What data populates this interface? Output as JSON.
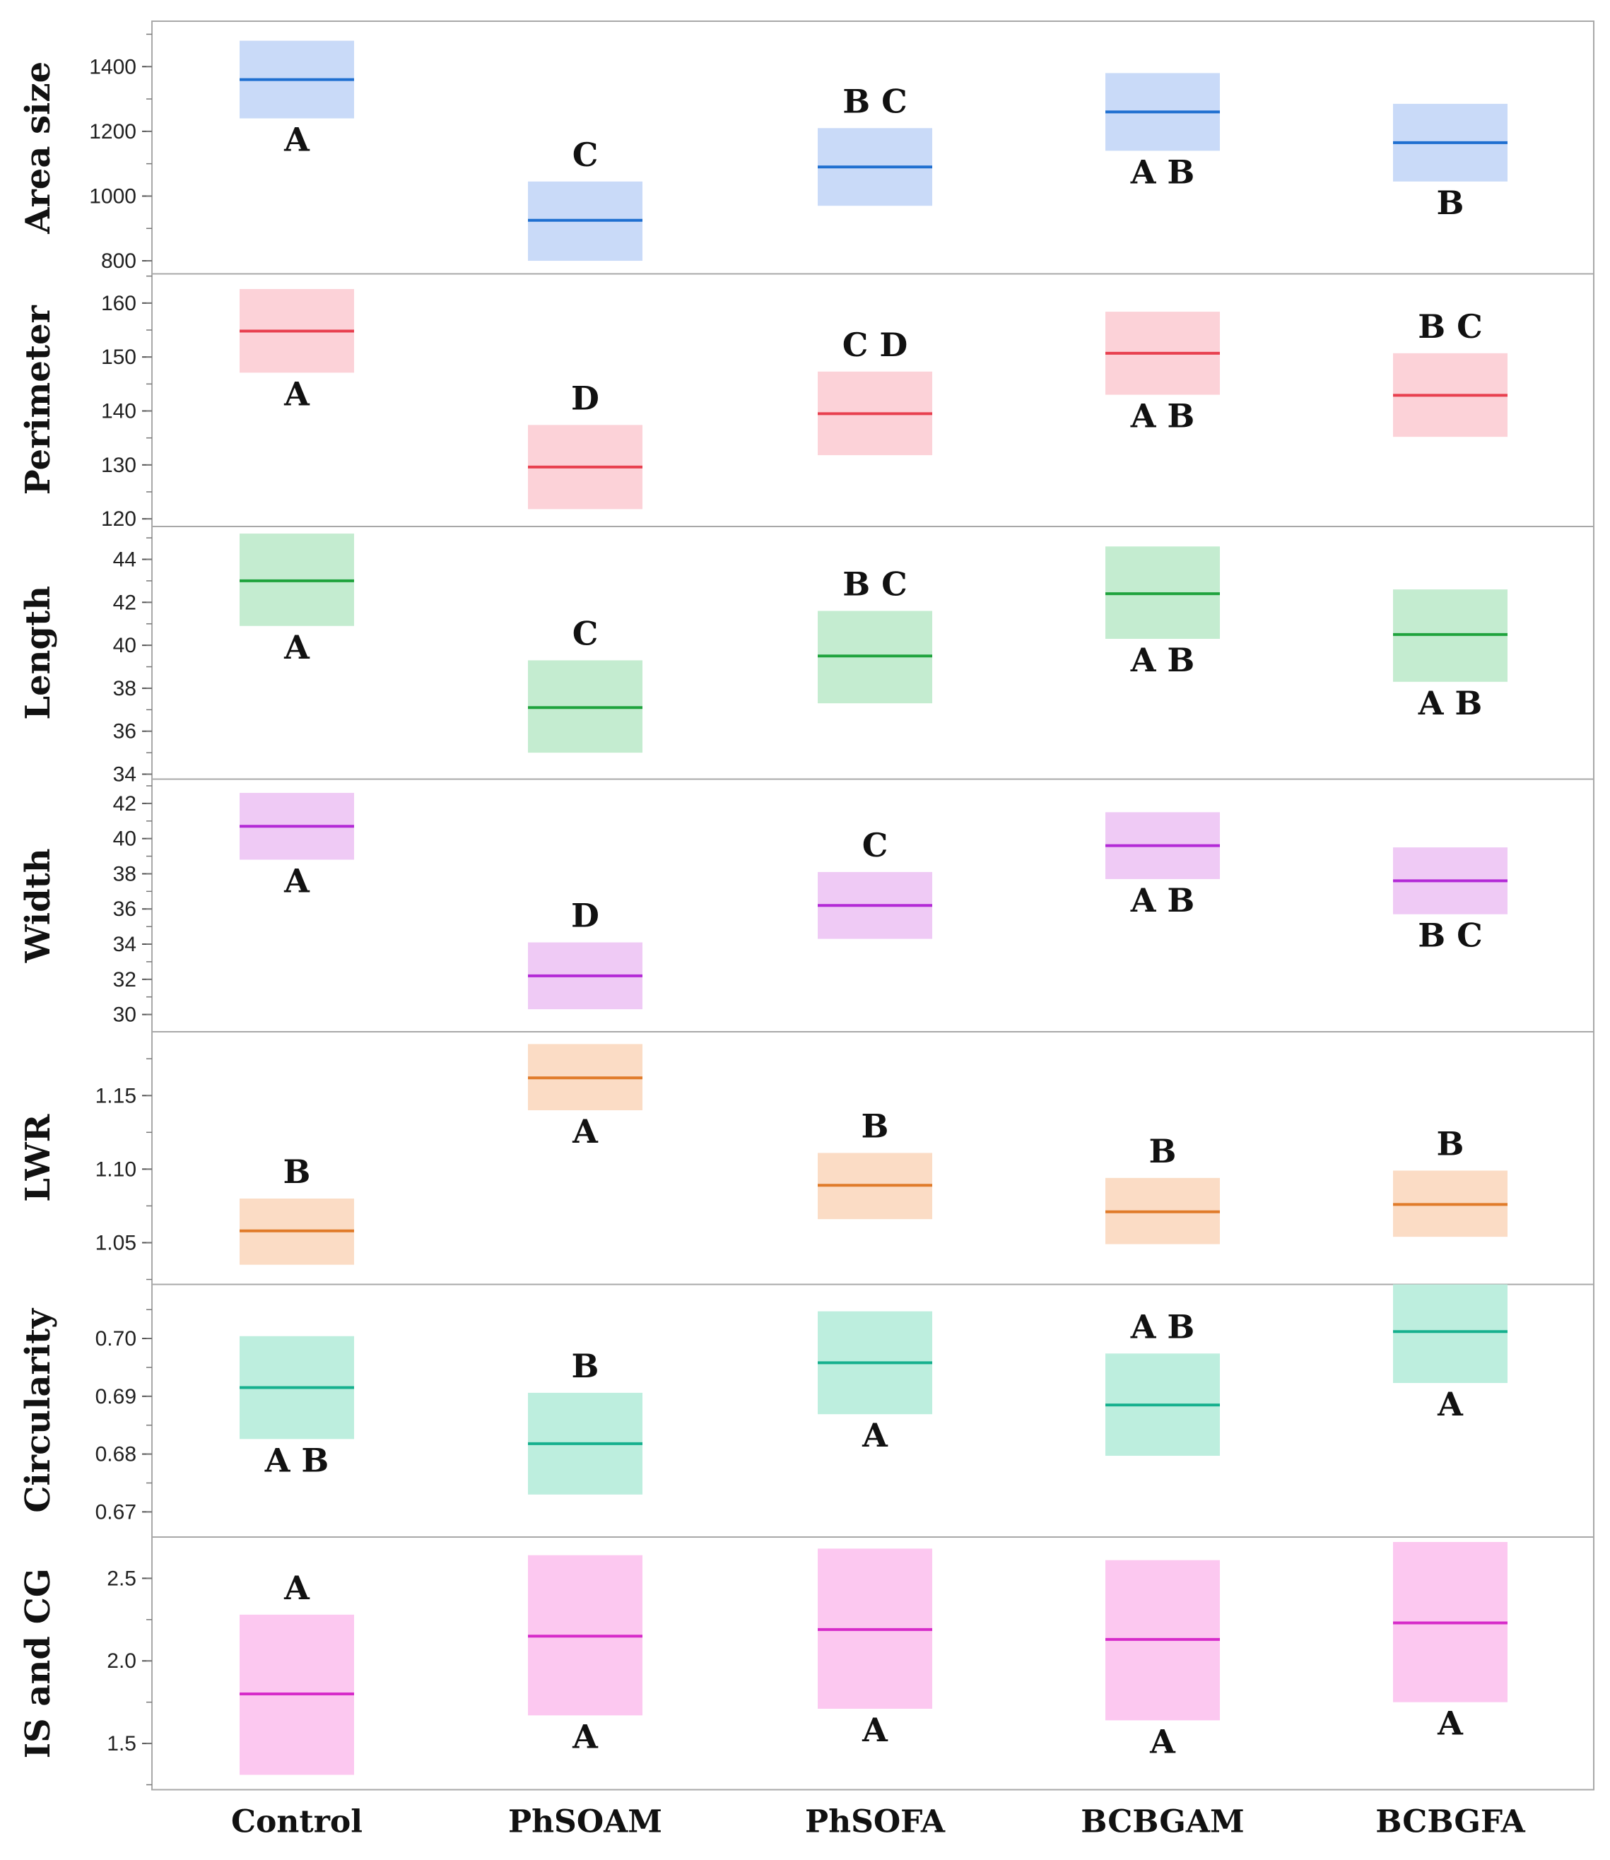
{
  "chart_data": {
    "type": "box",
    "categories": [
      "Control",
      "PhSOAM",
      "PhSOFA",
      "BCBGAM",
      "BCBGFA"
    ],
    "panels": [
      {
        "title": "Area size",
        "ylim": [
          775,
          1525
        ],
        "ticks": [
          800,
          1000,
          1200,
          1400
        ],
        "tick_labels": [
          "800",
          "1000",
          "1200",
          "1400"
        ],
        "color": "#1f6fd0",
        "fill": "#c9daf8",
        "series": [
          {
            "category": "Control",
            "mean": 1360,
            "lower": 1240,
            "upper": 1480,
            "letters": "A",
            "label_pos": "below"
          },
          {
            "category": "PhSOAM",
            "mean": 925,
            "lower": 800,
            "upper": 1045,
            "letters": "C",
            "label_pos": "above"
          },
          {
            "category": "PhSOFA",
            "mean": 1090,
            "lower": 970,
            "upper": 1210,
            "letters": "B C",
            "label_pos": "above"
          },
          {
            "category": "BCBGAM",
            "mean": 1260,
            "lower": 1140,
            "upper": 1380,
            "letters": "A B",
            "label_pos": "below"
          },
          {
            "category": "BCBGFA",
            "mean": 1165,
            "lower": 1045,
            "upper": 1285,
            "letters": "B",
            "label_pos": "below"
          }
        ]
      },
      {
        "title": "Perimeter",
        "ylim": [
          119.5,
          164.5
        ],
        "ticks": [
          120,
          130,
          140,
          150,
          160
        ],
        "tick_labels": [
          "120",
          "130",
          "140",
          "150",
          "160"
        ],
        "color": "#e8404f",
        "fill": "#fcd2d8",
        "series": [
          {
            "category": "Control",
            "mean": 154.8,
            "lower": 147.1,
            "upper": 162.6,
            "letters": "A",
            "label_pos": "below"
          },
          {
            "category": "PhSOAM",
            "mean": 129.6,
            "lower": 121.8,
            "upper": 137.4,
            "letters": "D",
            "label_pos": "above"
          },
          {
            "category": "PhSOFA",
            "mean": 139.5,
            "lower": 131.8,
            "upper": 147.3,
            "letters": "C D",
            "label_pos": "above"
          },
          {
            "category": "BCBGAM",
            "mean": 150.7,
            "lower": 143.0,
            "upper": 158.4,
            "letters": "A B",
            "label_pos": "below"
          },
          {
            "category": "BCBGFA",
            "mean": 142.9,
            "lower": 135.2,
            "upper": 150.7,
            "letters": "B C",
            "label_pos": "above"
          }
        ]
      },
      {
        "title": "Length",
        "ylim": [
          34,
          45.3
        ],
        "ticks": [
          34,
          36,
          38,
          40,
          42,
          44
        ],
        "tick_labels": [
          "34",
          "36",
          "38",
          "40",
          "42",
          "44"
        ],
        "color": "#1fa33d",
        "fill": "#c4ecd0",
        "series": [
          {
            "category": "Control",
            "mean": 43.0,
            "lower": 40.9,
            "upper": 45.2,
            "letters": "A",
            "label_pos": "below"
          },
          {
            "category": "PhSOAM",
            "mean": 37.1,
            "lower": 35.0,
            "upper": 39.3,
            "letters": "C",
            "label_pos": "above"
          },
          {
            "category": "PhSOFA",
            "mean": 39.5,
            "lower": 37.3,
            "upper": 41.6,
            "letters": "B C",
            "label_pos": "above"
          },
          {
            "category": "BCBGAM",
            "mean": 42.4,
            "lower": 40.3,
            "upper": 44.6,
            "letters": "A B",
            "label_pos": "below"
          },
          {
            "category": "BCBGFA",
            "mean": 40.5,
            "lower": 38.3,
            "upper": 42.6,
            "letters": "A B",
            "label_pos": "below"
          }
        ]
      },
      {
        "title": "Width",
        "ylim": [
          29.3,
          43.1
        ],
        "ticks": [
          30,
          32,
          34,
          36,
          38,
          40,
          42
        ],
        "tick_labels": [
          "30",
          "32",
          "34",
          "36",
          "38",
          "40",
          "42"
        ],
        "color": "#b32ad6",
        "fill": "#efcaf5",
        "series": [
          {
            "category": "Control",
            "mean": 40.7,
            "lower": 38.8,
            "upper": 42.6,
            "letters": "A",
            "label_pos": "below"
          },
          {
            "category": "PhSOAM",
            "mean": 32.2,
            "lower": 30.3,
            "upper": 34.1,
            "letters": "D",
            "label_pos": "above"
          },
          {
            "category": "PhSOFA",
            "mean": 36.2,
            "lower": 34.3,
            "upper": 38.1,
            "letters": "C",
            "label_pos": "above"
          },
          {
            "category": "BCBGAM",
            "mean": 39.6,
            "lower": 37.7,
            "upper": 41.5,
            "letters": "A B",
            "label_pos": "below"
          },
          {
            "category": "BCBGFA",
            "mean": 37.6,
            "lower": 35.7,
            "upper": 39.5,
            "letters": "B C",
            "label_pos": "below"
          }
        ]
      },
      {
        "title": "LWR",
        "ylim": [
          1.025,
          1.19
        ],
        "ticks": [
          1.05,
          1.1,
          1.15
        ],
        "tick_labels": [
          "1.05",
          "1.10",
          "1.15"
        ],
        "color": "#e07b2a",
        "fill": "#fbdcc5",
        "series": [
          {
            "category": "Control",
            "mean": 1.058,
            "lower": 1.035,
            "upper": 1.08,
            "letters": "B",
            "label_pos": "above"
          },
          {
            "category": "PhSOAM",
            "mean": 1.162,
            "lower": 1.14,
            "upper": 1.185,
            "letters": "A",
            "label_pos": "below"
          },
          {
            "category": "PhSOFA",
            "mean": 1.089,
            "lower": 1.066,
            "upper": 1.111,
            "letters": "B",
            "label_pos": "above"
          },
          {
            "category": "BCBGAM",
            "mean": 1.071,
            "lower": 1.049,
            "upper": 1.094,
            "letters": "B",
            "label_pos": "above"
          },
          {
            "category": "BCBGFA",
            "mean": 1.076,
            "lower": 1.054,
            "upper": 1.099,
            "letters": "B",
            "label_pos": "above"
          }
        ]
      },
      {
        "title": "Circularity",
        "ylim": [
          0.6665,
          0.7085
        ],
        "ticks": [
          0.67,
          0.68,
          0.69,
          0.7
        ],
        "tick_labels": [
          "0.67",
          "0.68",
          "0.69",
          "0.70"
        ],
        "color": "#16b08e",
        "fill": "#bdeede",
        "series": [
          {
            "category": "Control",
            "mean": 0.6915,
            "lower": 0.6826,
            "upper": 0.7004,
            "letters": "A B",
            "label_pos": "below"
          },
          {
            "category": "PhSOAM",
            "mean": 0.6818,
            "lower": 0.673,
            "upper": 0.6906,
            "letters": "B",
            "label_pos": "above"
          },
          {
            "category": "PhSOFA",
            "mean": 0.6958,
            "lower": 0.6869,
            "upper": 0.7047,
            "letters": "A",
            "label_pos": "below"
          },
          {
            "category": "BCBGAM",
            "mean": 0.6885,
            "lower": 0.6797,
            "upper": 0.6974,
            "letters": "A B",
            "label_pos": "above"
          },
          {
            "category": "BCBGFA",
            "mean": 0.7012,
            "lower": 0.6923,
            "upper": 0.71,
            "letters": "A",
            "label_pos": "below"
          }
        ]
      },
      {
        "title": "IS and CG",
        "ylim": [
          1.25,
          2.72
        ],
        "ticks": [
          1.5,
          2.0,
          2.5
        ],
        "tick_labels": [
          "1.5",
          "2.0",
          "2.5"
        ],
        "color": "#d62bc9",
        "fill": "#fcc8f0",
        "series": [
          {
            "category": "Control",
            "mean": 1.8,
            "lower": 1.31,
            "upper": 2.28,
            "letters": "A",
            "label_pos": "above"
          },
          {
            "category": "PhSOAM",
            "mean": 2.15,
            "lower": 1.67,
            "upper": 2.64,
            "letters": "A",
            "label_pos": "below"
          },
          {
            "category": "PhSOFA",
            "mean": 2.19,
            "lower": 1.71,
            "upper": 2.68,
            "letters": "A",
            "label_pos": "below"
          },
          {
            "category": "BCBGAM",
            "mean": 2.13,
            "lower": 1.64,
            "upper": 2.61,
            "letters": "A",
            "label_pos": "below"
          },
          {
            "category": "BCBGFA",
            "mean": 2.23,
            "lower": 1.75,
            "upper": 2.72,
            "letters": "A",
            "label_pos": "below"
          }
        ]
      }
    ]
  }
}
